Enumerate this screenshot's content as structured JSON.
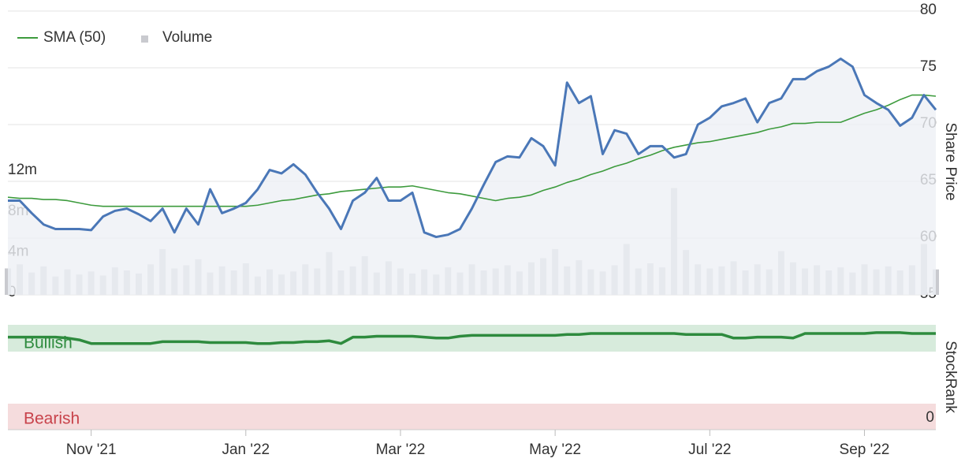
{
  "chart_data": [
    {
      "type": "line",
      "ylabel": "Share Price",
      "categories": [
        null,
        null,
        null,
        null,
        null,
        null,
        null,
        "Nov '21",
        null,
        null,
        null,
        null,
        null,
        null,
        null,
        null,
        null,
        null,
        null,
        null,
        "Jan '22",
        null,
        null,
        null,
        null,
        null,
        null,
        null,
        null,
        null,
        null,
        null,
        null,
        "Mar '22",
        null,
        null,
        null,
        null,
        null,
        null,
        null,
        null,
        null,
        null,
        null,
        null,
        "May '22",
        null,
        null,
        null,
        null,
        null,
        null,
        null,
        null,
        null,
        null,
        null,
        null,
        "Jul '22",
        null,
        null,
        null,
        null,
        null,
        null,
        null,
        null,
        null,
        null,
        null,
        null,
        "Sep '22",
        null,
        null,
        null,
        null,
        null,
        null
      ],
      "ylim": [
        55,
        80
      ],
      "yticks": [
        55,
        60,
        65,
        70,
        75,
        80
      ],
      "y2lim": [
        0,
        27900000
      ],
      "y2ticks": [
        {
          "value": 0,
          "label": "0"
        },
        {
          "value": 4000000,
          "label": "4m"
        },
        {
          "value": 8000000,
          "label": "8m"
        },
        {
          "value": 12000000,
          "label": "12m"
        }
      ],
      "grid": true,
      "price": {
        "color": "#4a77b7",
        "fill": "#eef0f5",
        "values": [
          63.3,
          63.3,
          62.2,
          61.2,
          60.8,
          60.8,
          60.8,
          60.7,
          61.9,
          62.4,
          62.6,
          62.1,
          61.5,
          62.6,
          60.5,
          62.6,
          61.2,
          64.3,
          62.2,
          62.6,
          63.1,
          64.3,
          66.0,
          65.7,
          66.5,
          65.6,
          64.0,
          62.6,
          60.8,
          63.3,
          64.0,
          65.3,
          63.3,
          63.3,
          64.0,
          60.5,
          60.1,
          60.3,
          60.8,
          62.6,
          64.7,
          66.7,
          67.2,
          67.1,
          68.8,
          68.1,
          66.4,
          73.7,
          71.9,
          72.5,
          67.4,
          69.5,
          69.2,
          67.4,
          68.1,
          68.1,
          67.1,
          67.4,
          70.0,
          70.6,
          71.6,
          71.9,
          72.3,
          70.2,
          71.9,
          72.3,
          74.0,
          74.0,
          74.7,
          75.1,
          75.8,
          75.1,
          72.6,
          71.9,
          71.3,
          69.9,
          70.6,
          72.6,
          71.3
        ]
      },
      "series": [
        {
          "name": "SMA (50)",
          "color": "#3d9b3d",
          "values": [
            63.6,
            63.5,
            63.5,
            63.4,
            63.4,
            63.3,
            63.1,
            62.9,
            62.8,
            62.8,
            62.8,
            62.8,
            62.8,
            62.8,
            62.8,
            62.8,
            62.8,
            62.8,
            62.8,
            62.8,
            62.8,
            62.9,
            63.1,
            63.3,
            63.4,
            63.6,
            63.8,
            63.9,
            64.1,
            64.2,
            64.3,
            64.4,
            64.5,
            64.5,
            64.6,
            64.4,
            64.2,
            64.0,
            63.9,
            63.7,
            63.5,
            63.3,
            63.5,
            63.6,
            63.8,
            64.2,
            64.5,
            64.9,
            65.2,
            65.6,
            65.9,
            66.3,
            66.6,
            67.0,
            67.3,
            67.7,
            68.0,
            68.2,
            68.4,
            68.5,
            68.7,
            68.9,
            69.1,
            69.3,
            69.6,
            69.8,
            70.1,
            70.1,
            70.2,
            70.2,
            70.2,
            70.6,
            71.0,
            71.3,
            71.7,
            72.2,
            72.6,
            72.6,
            72.5
          ]
        },
        {
          "name": "Volume",
          "color": "#c9cacf",
          "axis": "y2",
          "values": [
            2600000,
            3000000,
            2200000,
            2800000,
            1800000,
            2500000,
            2000000,
            2300000,
            1900000,
            2700000,
            2400000,
            2100000,
            3000000,
            4500000,
            2600000,
            2900000,
            3500000,
            2200000,
            2800000,
            2400000,
            3100000,
            1800000,
            2500000,
            2000000,
            2300000,
            3000000,
            2600000,
            4200000,
            2400000,
            2800000,
            3800000,
            2200000,
            3300000,
            2600000,
            2100000,
            2500000,
            2000000,
            2700000,
            2200000,
            3000000,
            2400000,
            2600000,
            2900000,
            2300000,
            3200000,
            3600000,
            4500000,
            2800000,
            3400000,
            2500000,
            2300000,
            2900000,
            5000000,
            2600000,
            3100000,
            2700000,
            10500000,
            4400000,
            3000000,
            2600000,
            2800000,
            3300000,
            2400000,
            3000000,
            2500000,
            4300000,
            3200000,
            2600000,
            2900000,
            2400000,
            2700000,
            2200000,
            3000000,
            2500000,
            2800000,
            2400000,
            2900000,
            5000000,
            2500000
          ]
        }
      ]
    },
    {
      "type": "line",
      "ylabel": "StockRank",
      "ylim": [
        0,
        100
      ],
      "yticks": [
        0
      ],
      "bands": [
        {
          "label": "Bullish",
          "color": "#d7ebdc",
          "text": "#2e8b3e"
        },
        {
          "label": "Bearish",
          "color": "#f5dcdd",
          "text": "#c8434b"
        }
      ],
      "series": [
        {
          "color": "#2e8b3e",
          "values": [
            89,
            89,
            89,
            89,
            89,
            88,
            86,
            82,
            82,
            82,
            82,
            82,
            82,
            84,
            84,
            84,
            84,
            83,
            83,
            83,
            83,
            82,
            82,
            83,
            83,
            84,
            84,
            85,
            82,
            89,
            89,
            90,
            90,
            90,
            90,
            89,
            88,
            88,
            90,
            91,
            91,
            91,
            91,
            91,
            91,
            91,
            91,
            92,
            92,
            93,
            93,
            93,
            93,
            93,
            93,
            93,
            93,
            92,
            92,
            92,
            92,
            88,
            88,
            89,
            89,
            89,
            88,
            93,
            93,
            93,
            93,
            93,
            93,
            94,
            94,
            94,
            93,
            93,
            93
          ]
        }
      ]
    }
  ]
}
